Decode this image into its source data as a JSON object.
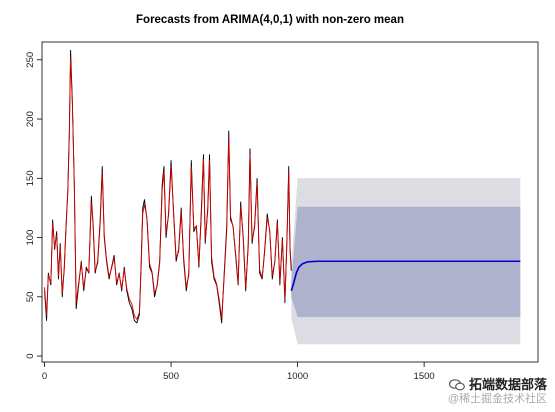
{
  "chart_data": {
    "type": "line",
    "title": "Forecasts from ARIMA(4,0,1) with non-zero mean",
    "xlabel": "",
    "ylabel": "",
    "xlim": [
      -10,
      1950
    ],
    "ylim": [
      -5,
      265
    ],
    "x_ticks": [
      0,
      500,
      1000,
      1500
    ],
    "y_ticks": [
      0,
      50,
      100,
      150,
      200,
      250
    ],
    "grid": false,
    "legend": "none",
    "series": [
      {
        "role": "observed",
        "color": "#000000",
        "points": [
          [
            0,
            55
          ],
          [
            8,
            30
          ],
          [
            15,
            70
          ],
          [
            25,
            60
          ],
          [
            32,
            115
          ],
          [
            40,
            90
          ],
          [
            48,
            105
          ],
          [
            55,
            65
          ],
          [
            62,
            95
          ],
          [
            70,
            50
          ],
          [
            78,
            75
          ],
          [
            85,
            110
          ],
          [
            92,
            140
          ],
          [
            98,
            190
          ],
          [
            103,
            258
          ],
          [
            110,
            215
          ],
          [
            118,
            140
          ],
          [
            125,
            40
          ],
          [
            135,
            60
          ],
          [
            145,
            80
          ],
          [
            155,
            55
          ],
          [
            165,
            75
          ],
          [
            175,
            70
          ],
          [
            185,
            135
          ],
          [
            192,
            110
          ],
          [
            200,
            70
          ],
          [
            210,
            80
          ],
          [
            220,
            115
          ],
          [
            228,
            160
          ],
          [
            236,
            100
          ],
          [
            245,
            80
          ],
          [
            255,
            65
          ],
          [
            265,
            75
          ],
          [
            275,
            85
          ],
          [
            285,
            60
          ],
          [
            295,
            70
          ],
          [
            305,
            55
          ],
          [
            315,
            75
          ],
          [
            325,
            55
          ],
          [
            335,
            45
          ],
          [
            345,
            40
          ],
          [
            355,
            30
          ],
          [
            365,
            28
          ],
          [
            375,
            35
          ],
          [
            382,
            80
          ],
          [
            388,
            125
          ],
          [
            395,
            132
          ],
          [
            405,
            115
          ],
          [
            415,
            75
          ],
          [
            425,
            70
          ],
          [
            435,
            50
          ],
          [
            445,
            60
          ],
          [
            455,
            80
          ],
          [
            465,
            145
          ],
          [
            472,
            160
          ],
          [
            480,
            100
          ],
          [
            490,
            120
          ],
          [
            500,
            165
          ],
          [
            510,
            120
          ],
          [
            520,
            80
          ],
          [
            530,
            90
          ],
          [
            540,
            125
          ],
          [
            550,
            80
          ],
          [
            560,
            55
          ],
          [
            570,
            70
          ],
          [
            580,
            165
          ],
          [
            590,
            105
          ],
          [
            600,
            110
          ],
          [
            610,
            75
          ],
          [
            620,
            125
          ],
          [
            628,
            170
          ],
          [
            635,
            95
          ],
          [
            645,
            125
          ],
          [
            652,
            170
          ],
          [
            660,
            80
          ],
          [
            670,
            65
          ],
          [
            680,
            60
          ],
          [
            690,
            45
          ],
          [
            700,
            28
          ],
          [
            710,
            70
          ],
          [
            720,
            110
          ],
          [
            728,
            190
          ],
          [
            735,
            115
          ],
          [
            745,
            110
          ],
          [
            755,
            85
          ],
          [
            765,
            60
          ],
          [
            775,
            130
          ],
          [
            785,
            100
          ],
          [
            795,
            55
          ],
          [
            805,
            95
          ],
          [
            812,
            175
          ],
          [
            820,
            95
          ],
          [
            830,
            110
          ],
          [
            840,
            150
          ],
          [
            850,
            70
          ],
          [
            860,
            65
          ],
          [
            870,
            90
          ],
          [
            880,
            120
          ],
          [
            890,
            105
          ],
          [
            900,
            65
          ],
          [
            910,
            80
          ],
          [
            920,
            115
          ],
          [
            930,
            60
          ],
          [
            940,
            100
          ],
          [
            950,
            45
          ],
          [
            958,
            100
          ],
          [
            965,
            160
          ],
          [
            970,
            90
          ],
          [
            975,
            72
          ]
        ]
      },
      {
        "role": "fitted",
        "color": "#d40000",
        "points": [
          [
            0,
            58
          ],
          [
            8,
            35
          ],
          [
            15,
            68
          ],
          [
            25,
            62
          ],
          [
            32,
            112
          ],
          [
            40,
            92
          ],
          [
            48,
            102
          ],
          [
            55,
            68
          ],
          [
            62,
            93
          ],
          [
            70,
            53
          ],
          [
            78,
            73
          ],
          [
            85,
            108
          ],
          [
            92,
            138
          ],
          [
            98,
            186
          ],
          [
            103,
            252
          ],
          [
            110,
            212
          ],
          [
            118,
            142
          ],
          [
            125,
            45
          ],
          [
            135,
            62
          ],
          [
            145,
            78
          ],
          [
            155,
            58
          ],
          [
            165,
            73
          ],
          [
            175,
            71
          ],
          [
            185,
            130
          ],
          [
            192,
            112
          ],
          [
            200,
            72
          ],
          [
            210,
            78
          ],
          [
            220,
            112
          ],
          [
            228,
            155
          ],
          [
            236,
            102
          ],
          [
            245,
            82
          ],
          [
            255,
            67
          ],
          [
            265,
            74
          ],
          [
            275,
            83
          ],
          [
            285,
            62
          ],
          [
            295,
            69
          ],
          [
            305,
            57
          ],
          [
            315,
            73
          ],
          [
            325,
            57
          ],
          [
            335,
            48
          ],
          [
            345,
            44
          ],
          [
            355,
            34
          ],
          [
            365,
            31
          ],
          [
            375,
            37
          ],
          [
            382,
            76
          ],
          [
            388,
            120
          ],
          [
            395,
            128
          ],
          [
            405,
            116
          ],
          [
            415,
            78
          ],
          [
            425,
            71
          ],
          [
            435,
            53
          ],
          [
            445,
            59
          ],
          [
            455,
            78
          ],
          [
            465,
            140
          ],
          [
            472,
            156
          ],
          [
            480,
            104
          ],
          [
            490,
            118
          ],
          [
            500,
            160
          ],
          [
            510,
            122
          ],
          [
            520,
            83
          ],
          [
            530,
            88
          ],
          [
            540,
            121
          ],
          [
            550,
            83
          ],
          [
            560,
            58
          ],
          [
            570,
            68
          ],
          [
            580,
            160
          ],
          [
            590,
            108
          ],
          [
            600,
            109
          ],
          [
            610,
            78
          ],
          [
            620,
            120
          ],
          [
            628,
            166
          ],
          [
            635,
            98
          ],
          [
            645,
            122
          ],
          [
            652,
            165
          ],
          [
            660,
            84
          ],
          [
            670,
            67
          ],
          [
            680,
            61
          ],
          [
            690,
            48
          ],
          [
            700,
            32
          ],
          [
            710,
            67
          ],
          [
            720,
            106
          ],
          [
            728,
            184
          ],
          [
            735,
            118
          ],
          [
            745,
            109
          ],
          [
            755,
            87
          ],
          [
            765,
            62
          ],
          [
            775,
            126
          ],
          [
            785,
            102
          ],
          [
            795,
            58
          ],
          [
            805,
            92
          ],
          [
            812,
            170
          ],
          [
            820,
            98
          ],
          [
            830,
            108
          ],
          [
            840,
            146
          ],
          [
            850,
            73
          ],
          [
            860,
            66
          ],
          [
            870,
            88
          ],
          [
            880,
            117
          ],
          [
            890,
            106
          ],
          [
            900,
            68
          ],
          [
            910,
            79
          ],
          [
            920,
            112
          ],
          [
            930,
            63
          ],
          [
            940,
            98
          ],
          [
            950,
            48
          ],
          [
            958,
            97
          ],
          [
            965,
            155
          ],
          [
            970,
            92
          ],
          [
            975,
            75
          ]
        ]
      },
      {
        "role": "forecast",
        "color": "#0000cc",
        "points": [
          [
            975,
            55
          ],
          [
            985,
            62
          ],
          [
            995,
            70
          ],
          [
            1005,
            75
          ],
          [
            1020,
            78
          ],
          [
            1040,
            79.5
          ],
          [
            1080,
            80
          ],
          [
            1200,
            80
          ],
          [
            1500,
            80
          ],
          [
            1880,
            80
          ]
        ]
      }
    ],
    "intervals": [
      {
        "level": "95%",
        "color": "#dcdce2",
        "x": [
          975,
          1000,
          1880
        ],
        "lower": [
          32,
          10,
          10
        ],
        "upper": [
          75,
          150,
          150
        ]
      },
      {
        "level": "80%",
        "color": "#aeb2cc",
        "x": [
          975,
          1000,
          1880
        ],
        "lower": [
          50,
          33,
          33
        ],
        "upper": [
          62,
          126,
          126
        ]
      }
    ]
  },
  "watermark": {
    "line1": "拓端数据部落",
    "line2": "@稀土掘金技术社区"
  }
}
